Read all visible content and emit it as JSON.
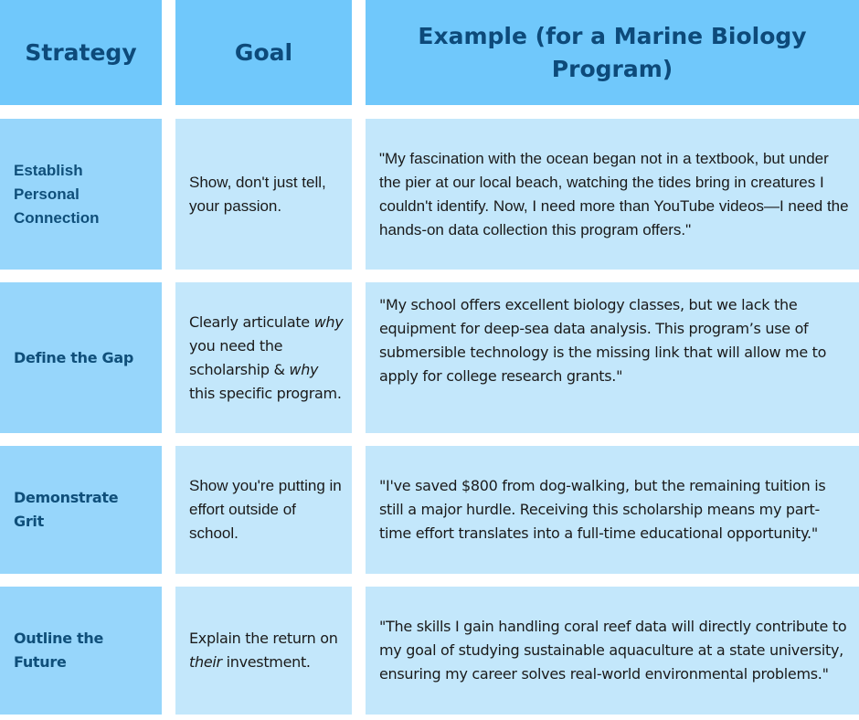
{
  "header": {
    "strategy": "Strategy",
    "goal": "Goal",
    "example": "Example (for a Marine Biology Program)"
  },
  "rows": [
    {
      "strategy": "Establish Personal Connection",
      "goal": [
        "Show, don't just tell, your passion."
      ],
      "example": "\"My fascination with the ocean began not in a textbook, but under the pier at our local beach, watching the tides bring in creatures I couldn't identify. Now, I need more than YouTube videos—I need the hands-on data collection this program offers.\""
    },
    {
      "strategy": "Define the Gap",
      "goal": [
        "Clearly articulate ",
        "why",
        " you need the scholarship & ",
        "why",
        " this specific program."
      ],
      "example": "\"My school offers excellent biology classes, but we lack the equipment for deep-sea data analysis. This program’s use of submersible technology is the missing link that will allow me to apply for college research grants.\""
    },
    {
      "strategy": "Demonstrate Grit",
      "goal": [
        "Show you're putting in effort outside of school."
      ],
      "example": "\"I've saved $800 from dog-walking, but the remaining tuition is still a major hurdle. Receiving this scholarship means my part-time effort translates into a full-time educational opportunity.\""
    },
    {
      "strategy": "Outline the Future",
      "goal": [
        "Explain the return on ",
        "their",
        " investment."
      ],
      "example": "\"The skills I gain handling coral reef data will directly contribute to my goal of studying sustainable aquaculture at a state university, ensuring my career solves real-world environmental problems.\""
    }
  ],
  "colors": {
    "header_bg": "#70c8fb",
    "strategy_bg": "#97d6fb",
    "cell_bg": "#c3e7fb",
    "heading_text": "#0d4a7a"
  }
}
